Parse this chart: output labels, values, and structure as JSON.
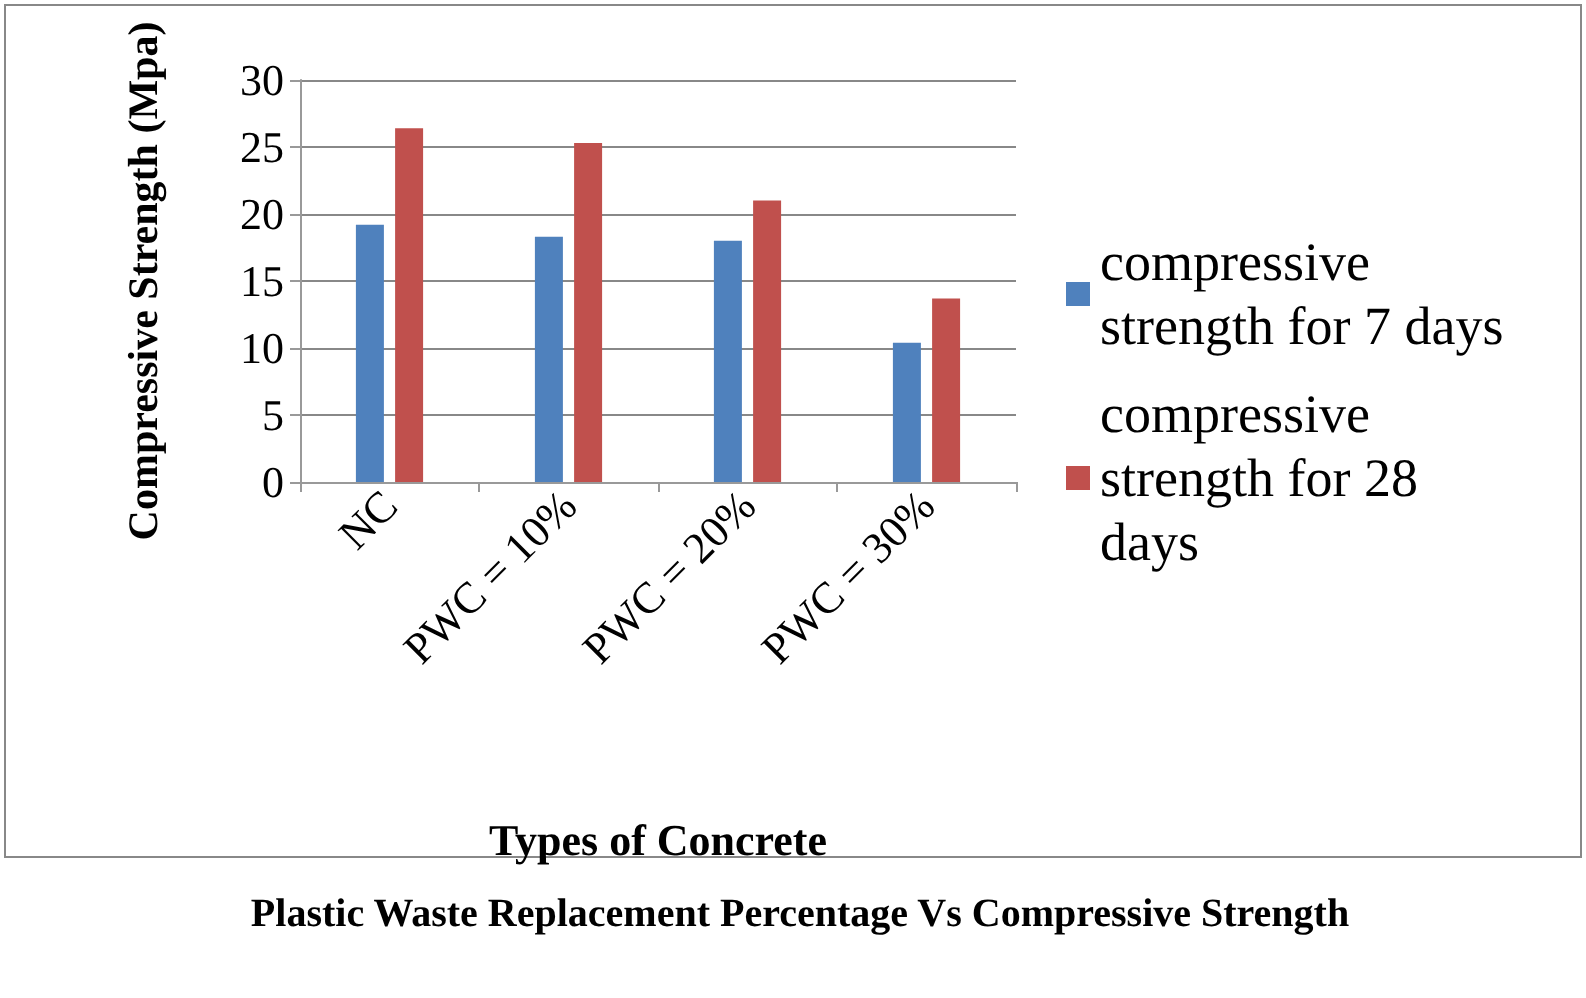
{
  "chart_data": {
    "type": "bar",
    "title": "Plastic Waste Replacement Percentage Vs Compressive Strength",
    "xlabel": "Types of Concrete",
    "ylabel": "Compressive Strength (Mpa)",
    "categories": [
      "NC",
      "PWC = 10%",
      "PWC = 20%",
      "PWC = 30%"
    ],
    "series": [
      {
        "name": "compressive strength for 7 days",
        "color": "#4f81bd",
        "values": [
          19.2,
          18.3,
          18.0,
          10.4
        ]
      },
      {
        "name": "compressive strength for 28 days",
        "color": "#c0504d",
        "values": [
          26.4,
          25.3,
          21.0,
          13.7
        ]
      }
    ],
    "ylim": [
      0,
      30
    ],
    "yticks": [
      0,
      5,
      10,
      15,
      20,
      25,
      30
    ],
    "grid": "y",
    "legend": "right"
  }
}
